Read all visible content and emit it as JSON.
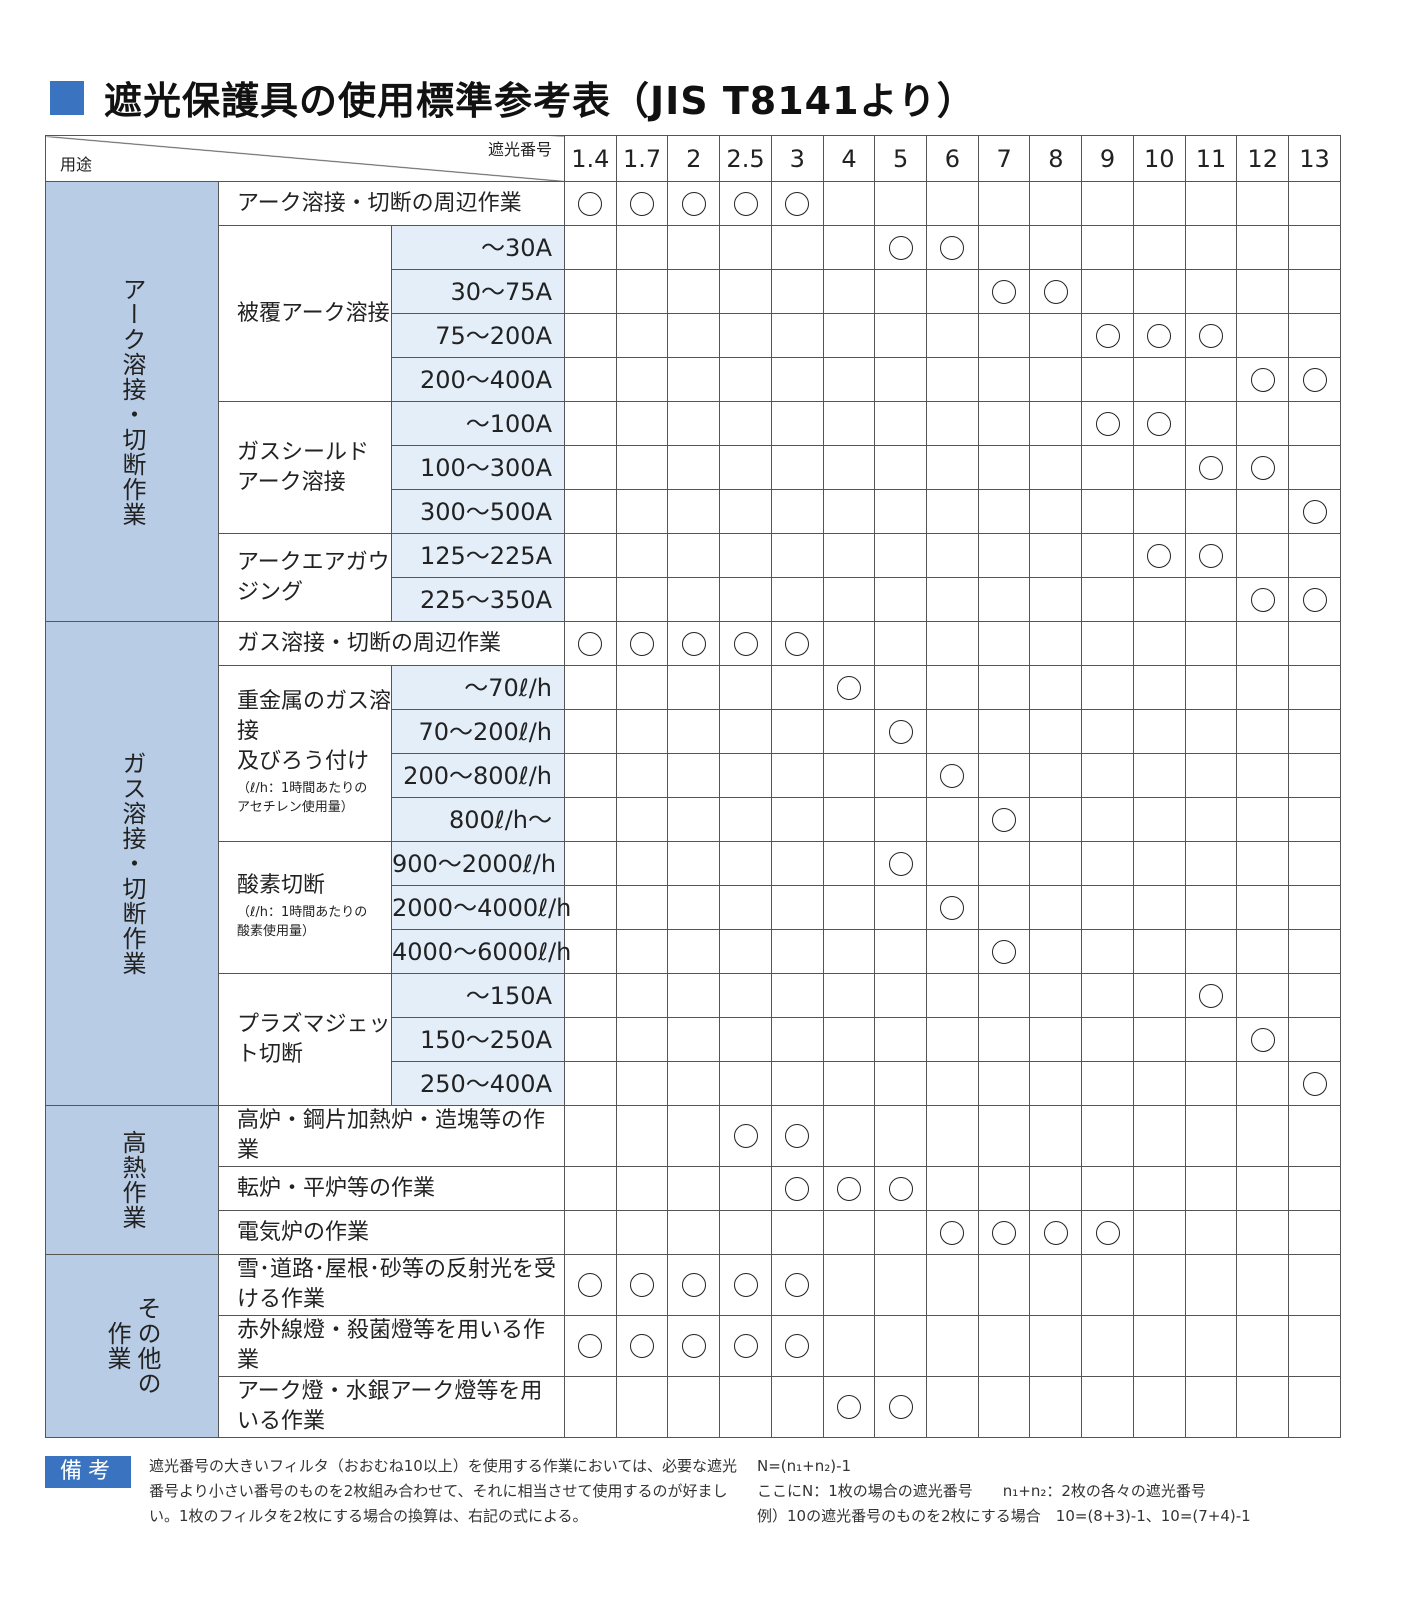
{
  "title": "遮光保護具の使用標準参考表（JIS T8141より）",
  "colors": {
    "accent": "#3a74c0",
    "category_bg": "#b8cce6",
    "subrange_bg": "#e4eef9"
  },
  "header": {
    "usage": "用途",
    "shade_label": "遮光番号",
    "shades": [
      "1.4",
      "1.7",
      "2",
      "2.5",
      "3",
      "4",
      "5",
      "6",
      "7",
      "8",
      "9",
      "10",
      "11",
      "12",
      "13"
    ]
  },
  "groups": [
    {
      "category": "アーク溶接・切断作業",
      "tasks": [
        {
          "name": "アーク溶接・切断の周辺作業",
          "rows": [
            {
              "range": null,
              "marks": [
                "1.4",
                "1.7",
                "2",
                "2.5",
                "3"
              ]
            }
          ]
        },
        {
          "name": "被覆アーク溶接",
          "rows": [
            {
              "range": "～30A",
              "marks": [
                "5",
                "6"
              ]
            },
            {
              "range": "30～75A",
              "marks": [
                "7",
                "8"
              ]
            },
            {
              "range": "75～200A",
              "marks": [
                "9",
                "10",
                "11"
              ]
            },
            {
              "range": "200～400A",
              "marks": [
                "12",
                "13"
              ]
            }
          ]
        },
        {
          "name": "ガスシールド\nアーク溶接",
          "rows": [
            {
              "range": "～100A",
              "marks": [
                "9",
                "10"
              ]
            },
            {
              "range": "100～300A",
              "marks": [
                "11",
                "12"
              ]
            },
            {
              "range": "300～500A",
              "marks": [
                "13"
              ]
            }
          ]
        },
        {
          "name": "アークエアガウジング",
          "rows": [
            {
              "range": "125～225A",
              "marks": [
                "10",
                "11"
              ]
            },
            {
              "range": "225～350A",
              "marks": [
                "12",
                "13"
              ]
            }
          ]
        }
      ]
    },
    {
      "category": "ガス溶接・切断作業",
      "tasks": [
        {
          "name": "ガス溶接・切断の周辺作業",
          "rows": [
            {
              "range": null,
              "marks": [
                "1.4",
                "1.7",
                "2",
                "2.5",
                "3"
              ]
            }
          ]
        },
        {
          "name": "重金属のガス溶接\n及びろう付け",
          "note": "（ℓ/h：1時間あたりの\nアセチレン使用量）",
          "rows": [
            {
              "range": "～70ℓ/h",
              "marks": [
                "4"
              ]
            },
            {
              "range": "70～200ℓ/h",
              "marks": [
                "5"
              ]
            },
            {
              "range": "200～800ℓ/h",
              "marks": [
                "6"
              ]
            },
            {
              "range": "800ℓ/h～",
              "marks": [
                "7"
              ]
            }
          ]
        },
        {
          "name": "酸素切断",
          "note": "（ℓ/h：1時間あたりの\n酸素使用量）",
          "rows": [
            {
              "range": "900～2000ℓ/h",
              "marks": [
                "5"
              ]
            },
            {
              "range": "2000～4000ℓ/h",
              "marks": [
                "6"
              ]
            },
            {
              "range": "4000～6000ℓ/h",
              "marks": [
                "7"
              ]
            }
          ]
        },
        {
          "name": "プラズマジェット切断",
          "rows": [
            {
              "range": "～150A",
              "marks": [
                "11"
              ]
            },
            {
              "range": "150～250A",
              "marks": [
                "12"
              ]
            },
            {
              "range": "250～400A",
              "marks": [
                "13"
              ]
            }
          ]
        }
      ]
    },
    {
      "category": "高熱作業",
      "tasks": [
        {
          "name": "高炉・鋼片加熱炉・造塊等の作業",
          "rows": [
            {
              "range": null,
              "marks": [
                "2.5",
                "3"
              ]
            }
          ]
        },
        {
          "name": "転炉・平炉等の作業",
          "rows": [
            {
              "range": null,
              "marks": [
                "3",
                "4",
                "5"
              ]
            }
          ]
        },
        {
          "name": "電気炉の作業",
          "rows": [
            {
              "range": null,
              "marks": [
                "6",
                "7",
                "8",
                "9"
              ]
            }
          ]
        }
      ]
    },
    {
      "category": "その他の\n作業",
      "tasks": [
        {
          "name": "雪･道路･屋根･砂等の反射光を受ける作業",
          "rows": [
            {
              "range": null,
              "marks": [
                "1.4",
                "1.7",
                "2",
                "2.5",
                "3"
              ]
            }
          ]
        },
        {
          "name": "赤外線燈・殺菌燈等を用いる作業",
          "rows": [
            {
              "range": null,
              "marks": [
                "1.4",
                "1.7",
                "2",
                "2.5",
                "3"
              ]
            }
          ]
        },
        {
          "name": "アーク燈・水銀アーク燈等を用いる作業",
          "rows": [
            {
              "range": null,
              "marks": [
                "4",
                "5"
              ]
            }
          ]
        }
      ]
    }
  ],
  "notes": {
    "badge": "備考",
    "text": "遮光番号の大きいフィルタ（おおむね10以上）を使用する作業においては、必要な遮光番号より小さい番号のものを2枚組み合わせて、それに相当させて使用するのが好ましい。1枚のフィルタを2枚にする場合の換算は、右記の式による。",
    "formula": "N=(n₁+n₂)-1",
    "definition": "ここにN：1枚の場合の遮光番号　　n₁+n₂：2枚の各々の遮光番号",
    "example": "例）10の遮光番号のものを2枚にする場合　10=(8+3)-1、10=(7+4)-1"
  }
}
